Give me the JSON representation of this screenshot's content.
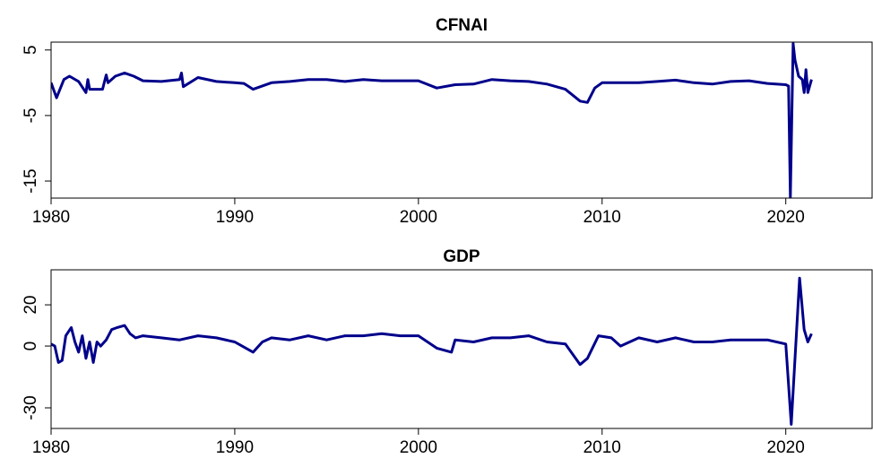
{
  "chart_data": [
    {
      "type": "line",
      "title": "CFNAI",
      "color": "#00008b",
      "x": [
        1980.0,
        1980.3,
        1980.7,
        1981.0,
        1981.5,
        1981.9,
        1982.0,
        1982.1,
        1982.8,
        1983.0,
        1983.1,
        1983.5,
        1984.0,
        1984.5,
        1985.0,
        1986.0,
        1987.0,
        1987.1,
        1987.2,
        1988.0,
        1989.0,
        1990.0,
        1990.5,
        1991.0,
        1992.0,
        1993.0,
        1994.0,
        1995.0,
        1996.0,
        1997.0,
        1998.0,
        1999.0,
        2000.0,
        2001.0,
        2002.0,
        2003.0,
        2004.0,
        2005.0,
        2006.0,
        2007.0,
        2008.0,
        2008.8,
        2009.2,
        2009.6,
        2010.0,
        2011.0,
        2012.0,
        2013.0,
        2014.0,
        2015.0,
        2016.0,
        2017.0,
        2018.0,
        2019.0,
        2020.0,
        2020.15,
        2020.25,
        2020.4,
        2020.5,
        2020.7,
        2020.9,
        2021.0,
        2021.1,
        2021.2,
        2021.4
      ],
      "values": [
        0,
        -2.3,
        0.5,
        1.0,
        0.2,
        -1.5,
        0.5,
        -1.0,
        -1.0,
        1.2,
        0,
        1.0,
        1.5,
        1.0,
        0.3,
        0.2,
        0.5,
        1.5,
        -0.6,
        0.8,
        0.2,
        0,
        -0.1,
        -1.0,
        0,
        0.2,
        0.5,
        0.5,
        0.2,
        0.5,
        0.3,
        0.3,
        0.3,
        -0.8,
        -0.3,
        -0.2,
        0.5,
        0.3,
        0.2,
        -0.2,
        -1.0,
        -2.8,
        -3.0,
        -0.8,
        0,
        0,
        0,
        0.2,
        0.4,
        0,
        -0.2,
        0.2,
        0.3,
        -0.1,
        -0.3,
        -0.5,
        -17.5,
        6.0,
        3.5,
        1.0,
        0.5,
        -1.5,
        2.0,
        -1.5,
        0.5
      ],
      "xlim": [
        1980,
        2024.7
      ],
      "xticks": [
        1980,
        1990,
        2000,
        2010,
        2020
      ],
      "ylim": [
        -17.6,
        6.2
      ],
      "yticks": [
        -15,
        -5,
        5
      ]
    },
    {
      "type": "line",
      "title": "GDP",
      "color": "#00008b",
      "x": [
        1980.0,
        1980.2,
        1980.4,
        1980.6,
        1980.8,
        1981.1,
        1981.3,
        1981.5,
        1981.7,
        1981.9,
        1982.1,
        1982.3,
        1982.5,
        1982.7,
        1983.0,
        1983.3,
        1983.6,
        1984.0,
        1984.3,
        1984.6,
        1985.0,
        1986.0,
        1987.0,
        1988.0,
        1989.0,
        1990.0,
        1991.0,
        1991.5,
        1992.0,
        1993.0,
        1994.0,
        1995.0,
        1996.0,
        1997.0,
        1998.0,
        1999.0,
        2000.0,
        2001.0,
        2001.8,
        2002.0,
        2003.0,
        2004.0,
        2005.0,
        2006.0,
        2007.0,
        2008.0,
        2008.8,
        2009.2,
        2009.8,
        2010.5,
        2011.0,
        2012.0,
        2013.0,
        2014.0,
        2015.0,
        2016.0,
        2017.0,
        2018.0,
        2019.0,
        2020.0,
        2020.3,
        2020.75,
        2021.0,
        2021.2,
        2021.4
      ],
      "values": [
        1,
        0,
        -8,
        -7,
        5,
        9,
        2,
        -3,
        5,
        -6,
        2,
        -8,
        2,
        0,
        3,
        8,
        9,
        10,
        6,
        4,
        5,
        4,
        3,
        5,
        4,
        2,
        -3,
        2,
        4,
        3,
        5,
        3,
        5,
        5,
        6,
        5,
        5,
        -1,
        -3,
        3,
        2,
        4,
        4,
        5,
        2,
        1,
        -9,
        -6,
        5,
        4,
        0,
        4,
        2,
        4,
        2,
        2,
        3,
        3,
        3,
        1,
        -38,
        33,
        8,
        2,
        6
      ],
      "xlim": [
        1980,
        2024.7
      ],
      "xticks": [
        1980,
        1990,
        2000,
        2010,
        2020
      ],
      "ylim": [
        -40,
        37
      ],
      "yticks": [
        -30,
        0,
        20
      ]
    }
  ]
}
